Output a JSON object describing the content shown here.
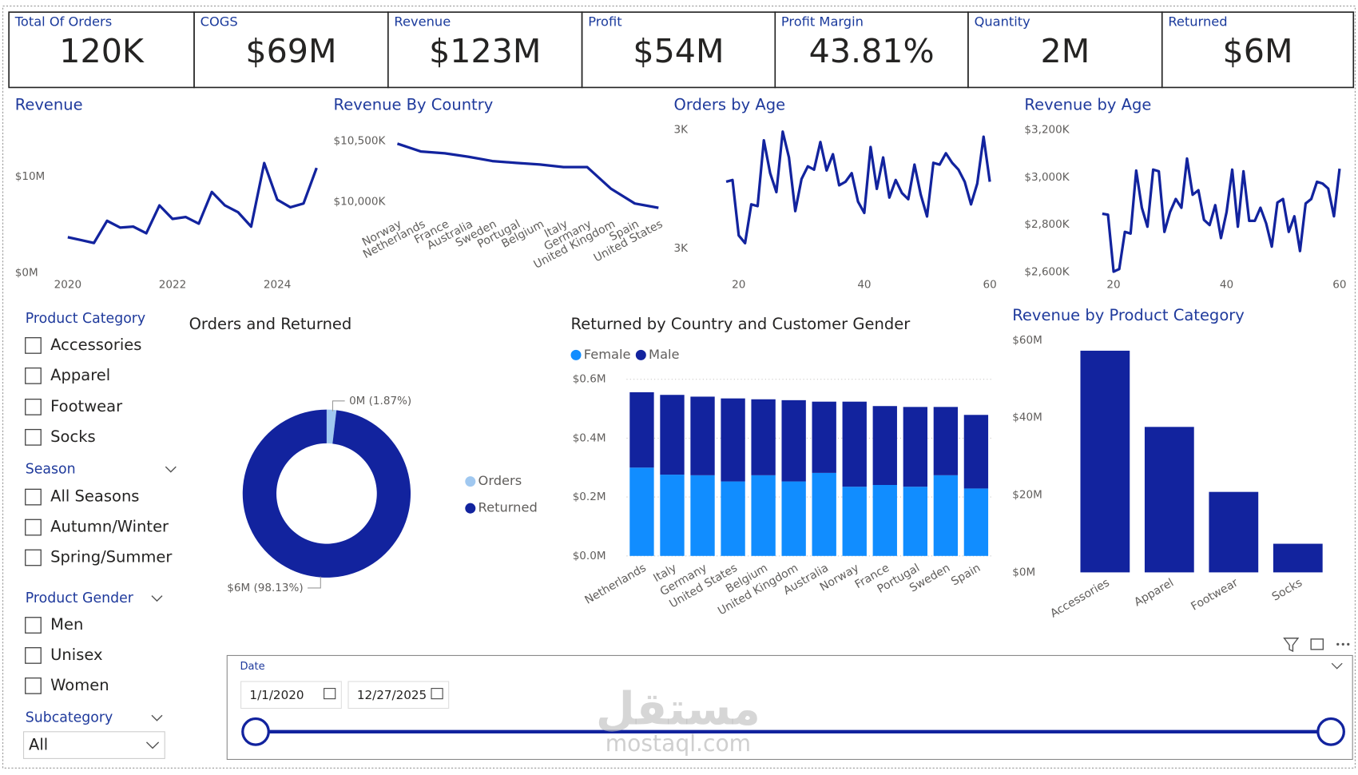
{
  "kpis": [
    {
      "label": "Total Of Orders",
      "value": "120K"
    },
    {
      "label": "COGS",
      "value": "$69M"
    },
    {
      "label": "Revenue",
      "value": "$123M"
    },
    {
      "label": "Profit",
      "value": "$54M"
    },
    {
      "label": "Profit Margin",
      "value": "43.81%"
    },
    {
      "label": "Quantity",
      "value": "2M"
    },
    {
      "label": "Returned",
      "value": "$6M"
    }
  ],
  "chart_data": [
    {
      "type": "line",
      "title": "Revenue",
      "color": "#12239e",
      "x": [
        2020,
        2020.25,
        2020.5,
        2020.75,
        2021,
        2021.25,
        2021.5,
        2021.75,
        2022,
        2022.25,
        2022.5,
        2022.75,
        2023,
        2023.25,
        2023.5,
        2023.75,
        2024,
        2024.25,
        2024.5,
        2024.75
      ],
      "values": [
        3.7,
        3.4,
        3.1,
        5.4,
        4.7,
        4.8,
        4.1,
        7.0,
        5.6,
        5.8,
        5.1,
        8.4,
        7.0,
        6.3,
        4.8,
        11.4,
        7.6,
        6.8,
        7.2,
        10.9
      ],
      "xlim": [
        2019.7,
        2024.8
      ],
      "xticks": [
        2020,
        2022,
        2024
      ],
      "ylim": [
        0,
        12.6
      ],
      "yticks": [
        {
          "value": 0,
          "label": "$0M"
        },
        {
          "value": 10,
          "label": "$10M"
        }
      ]
    },
    {
      "type": "line",
      "title": "Revenue By Country",
      "color": "#12239e",
      "categories": [
        "Norway",
        "Netherlands",
        "France",
        "Australia",
        "Sweden",
        "Portugal",
        "Belgium",
        "Italy",
        "Germany",
        "United Kingdom",
        "Spain",
        "United States"
      ],
      "values": [
        10479,
        10414,
        10400,
        10371,
        10336,
        10321,
        10307,
        10286,
        10286,
        10107,
        9986,
        9950
      ],
      "ylim": [
        9900,
        10600
      ],
      "yticks": [
        {
          "value": 10000,
          "label": "$10,000K"
        },
        {
          "value": 10500,
          "label": "$10,500K"
        }
      ]
    },
    {
      "type": "line",
      "title": "Orders by Age",
      "color": "#12239e",
      "x": [
        18,
        19,
        20,
        21,
        22,
        23,
        24,
        25,
        26,
        27,
        28,
        29,
        30,
        31,
        32,
        33,
        34,
        35,
        36,
        37,
        38,
        39,
        40,
        41,
        42,
        43,
        44,
        45,
        46,
        47,
        48,
        49,
        50,
        51,
        52,
        53,
        54,
        55,
        56,
        57,
        58,
        59,
        60
      ],
      "values": [
        2825,
        2831,
        2644,
        2618,
        2749,
        2743,
        2965,
        2854,
        2790,
        2994,
        2907,
        2726,
        2834,
        2877,
        2866,
        2959,
        2863,
        2918,
        2813,
        2825,
        2854,
        2758,
        2720,
        2942,
        2801,
        2907,
        2772,
        2831,
        2787,
        2766,
        2883,
        2781,
        2708,
        2889,
        2883,
        2921,
        2889,
        2866,
        2825,
        2749,
        2819,
        2977,
        2825
      ],
      "xlim": [
        17,
        61
      ],
      "xticks": [
        20,
        40,
        60
      ],
      "ylim": [
        2560,
        3030
      ],
      "yticks": [
        {
          "value": 2600,
          "label": "3K"
        },
        {
          "value": 3000,
          "label": "3K"
        }
      ]
    },
    {
      "type": "line",
      "title": "Revenue by Age",
      "color": "#12239e",
      "x": [
        18,
        19,
        20,
        21,
        22,
        23,
        24,
        25,
        26,
        27,
        28,
        29,
        30,
        31,
        32,
        33,
        34,
        35,
        36,
        37,
        38,
        39,
        40,
        41,
        42,
        43,
        44,
        45,
        46,
        47,
        48,
        49,
        50,
        51,
        52,
        53,
        54,
        55,
        56,
        57,
        58,
        59,
        60
      ],
      "values": [
        2846,
        2842,
        2601,
        2612,
        2769,
        2762,
        3028,
        2871,
        2791,
        3032,
        3025,
        2769,
        2853,
        2908,
        2871,
        3079,
        2926,
        2945,
        2820,
        2798,
        2882,
        2743,
        2853,
        3032,
        2791,
        3025,
        2816,
        2816,
        2871,
        2805,
        2707,
        2893,
        2908,
        2769,
        2835,
        2688,
        2889,
        2908,
        2981,
        2973,
        2952,
        2835,
        3036
      ],
      "xlim": [
        17,
        61
      ],
      "xticks": [
        20,
        40,
        60
      ],
      "ylim": [
        2600,
        3200
      ],
      "yticks": [
        {
          "value": 2600,
          "label": "$2,600K"
        },
        {
          "value": 2800,
          "label": "$2,800K"
        },
        {
          "value": 3000,
          "label": "$3,000K"
        },
        {
          "value": 3200,
          "label": "$3,200K"
        }
      ]
    },
    {
      "type": "donut",
      "title": "Orders and Returned",
      "categories": [
        "Orders",
        "Returned"
      ],
      "values": [
        1.87,
        98.13
      ],
      "value_labels": [
        "0M (1.87%)",
        "$6M (98.13%)"
      ],
      "colors": [
        "#a0c8f0",
        "#12239e"
      ],
      "legend": "right"
    },
    {
      "type": "stacked_bar",
      "title": "Returned by Country and Customer Gender",
      "categories": [
        "Netherlands",
        "Italy",
        "Germany",
        "United States",
        "Belgium",
        "United Kingdom",
        "Australia",
        "Norway",
        "France",
        "Portugal",
        "Sweden",
        "Spain"
      ],
      "series": [
        {
          "name": "Female",
          "color": "#118dff",
          "values": [
            0.3,
            0.276,
            0.274,
            0.253,
            0.274,
            0.253,
            0.282,
            0.235,
            0.241,
            0.235,
            0.274,
            0.229
          ]
        },
        {
          "name": "Male",
          "color": "#12239e",
          "values": [
            0.256,
            0.271,
            0.267,
            0.282,
            0.258,
            0.276,
            0.242,
            0.289,
            0.268,
            0.271,
            0.232,
            0.25
          ]
        }
      ],
      "ylim": [
        0,
        0.62
      ],
      "yticks": [
        {
          "value": 0,
          "label": "$0.0M"
        },
        {
          "value": 0.2,
          "label": "$0.2M"
        },
        {
          "value": 0.4,
          "label": "$0.4M"
        },
        {
          "value": 0.6,
          "label": "$0.6M"
        }
      ],
      "grid": true,
      "legend": "top-left"
    },
    {
      "type": "bar",
      "title": "Revenue by Product Category",
      "color": "#12239e",
      "categories": [
        "Accessories",
        "Apparel",
        "Footwear",
        "Socks"
      ],
      "values": [
        57.3,
        37.6,
        20.8,
        7.4
      ],
      "ylim": [
        0,
        62
      ],
      "yticks": [
        {
          "value": 0,
          "label": "$0M"
        },
        {
          "value": 20,
          "label": "$20M"
        },
        {
          "value": 40,
          "label": "$40M"
        },
        {
          "value": 60,
          "label": "$60M"
        }
      ],
      "grid": false
    }
  ],
  "slicers": [
    {
      "title": "Product Category",
      "items": [
        "Accessories",
        "Apparel",
        "Footwear",
        "Socks"
      ]
    },
    {
      "title": "Season",
      "items": [
        "All Seasons",
        "Autumn/Winter",
        "Spring/Summer"
      ]
    },
    {
      "title": "Product Gender",
      "items": [
        "Men",
        "Unisex",
        "Women"
      ]
    },
    {
      "title": "Subcategory",
      "selection": "All"
    }
  ],
  "date_slicer": {
    "title": "Date",
    "start": "1/1/2020",
    "end": "12/27/2025"
  },
  "watermark": {
    "arabic": "مستقل",
    "latin": "mostaql.com"
  }
}
